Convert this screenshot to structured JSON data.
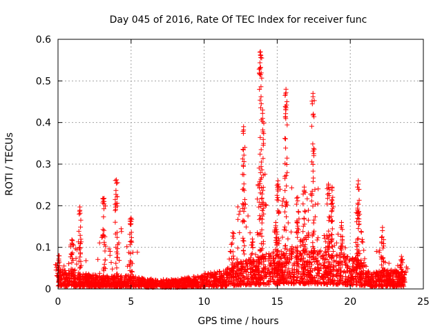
{
  "chart_data": {
    "type": "scatter",
    "title": "Day 045 of 2016, Rate Of TEC Index for receiver func",
    "xlabel": "GPS time / hours",
    "ylabel": "ROTI / TECUs",
    "xlim": [
      0,
      25
    ],
    "ylim": [
      0,
      0.6
    ],
    "x_ticks": [
      0,
      5,
      10,
      15,
      20,
      25
    ],
    "x_tick_labels": [
      "0",
      "5",
      "10",
      "15",
      "20",
      "25"
    ],
    "y_ticks": [
      0,
      0.1,
      0.2,
      0.3,
      0.4,
      0.5,
      0.6
    ],
    "y_tick_labels": [
      "0",
      "0.1",
      "0.2",
      "0.3",
      "0.4",
      "0.5",
      "0.6"
    ],
    "grid": true,
    "marker": "+",
    "marker_color": "#ff0000",
    "series": [
      {
        "name": "ROTI",
        "spikes": [
          {
            "x": 0.05,
            "ymax": 0.08
          },
          {
            "x": 0.95,
            "ymax": 0.118
          },
          {
            "x": 1.5,
            "ymax": 0.197
          },
          {
            "x": 3.15,
            "ymax": 0.218
          },
          {
            "x": 4.0,
            "ymax": 0.262
          },
          {
            "x": 5.0,
            "ymax": 0.17
          },
          {
            "x": 11.95,
            "ymax": 0.135
          },
          {
            "x": 12.7,
            "ymax": 0.39
          },
          {
            "x": 13.3,
            "ymax": 0.12
          },
          {
            "x": 13.85,
            "ymax": 0.57
          },
          {
            "x": 14.0,
            "ymax": 0.43
          },
          {
            "x": 14.9,
            "ymax": 0.16
          },
          {
            "x": 15.05,
            "ymax": 0.26
          },
          {
            "x": 15.6,
            "ymax": 0.48
          },
          {
            "x": 16.4,
            "ymax": 0.22
          },
          {
            "x": 16.85,
            "ymax": 0.245
          },
          {
            "x": 17.45,
            "ymax": 0.47
          },
          {
            "x": 18.5,
            "ymax": 0.252
          },
          {
            "x": 18.75,
            "ymax": 0.245
          },
          {
            "x": 19.4,
            "ymax": 0.16
          },
          {
            "x": 20.55,
            "ymax": 0.26
          },
          {
            "x": 20.5,
            "ymax": 0.19
          },
          {
            "x": 22.2,
            "ymax": 0.148
          },
          {
            "x": 23.5,
            "ymax": 0.078
          }
        ],
        "baseline_envelope": [
          {
            "x": 0,
            "y": 0.05
          },
          {
            "x": 1,
            "y": 0.04
          },
          {
            "x": 3,
            "y": 0.03
          },
          {
            "x": 5,
            "y": 0.03
          },
          {
            "x": 6,
            "y": 0.022
          },
          {
            "x": 8,
            "y": 0.02
          },
          {
            "x": 10,
            "y": 0.035
          },
          {
            "x": 11.5,
            "y": 0.045
          },
          {
            "x": 12.5,
            "y": 0.07
          },
          {
            "x": 13.5,
            "y": 0.075
          },
          {
            "x": 15,
            "y": 0.09
          },
          {
            "x": 16.5,
            "y": 0.1
          },
          {
            "x": 18,
            "y": 0.09
          },
          {
            "x": 19.5,
            "y": 0.08
          },
          {
            "x": 20.5,
            "y": 0.07
          },
          {
            "x": 21.5,
            "y": 0.04
          },
          {
            "x": 22.5,
            "y": 0.045
          },
          {
            "x": 23.7,
            "y": 0.04
          }
        ],
        "x_range": [
          0,
          23.75
        ]
      }
    ]
  }
}
